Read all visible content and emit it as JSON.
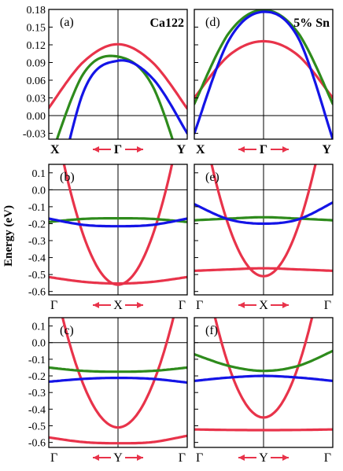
{
  "figure": {
    "ylabel": "Energy (eV)",
    "colors": {
      "red": "#e8334a",
      "green": "#2e8b1c",
      "blue": "#1414e6",
      "arrow": "#e8334a",
      "axis": "#000000"
    }
  },
  "chart_data": [
    {
      "id": "a",
      "type": "line",
      "label": "(a)",
      "annotation": "Ca122",
      "xlim": [
        -1,
        1
      ],
      "ylim": [
        -0.04,
        0.18
      ],
      "yticks": [
        "0.18",
        "0.15",
        "0.12",
        "0.09",
        "0.06",
        "0.03",
        "0.00",
        "-0.03"
      ],
      "yticks_v": [
        0.18,
        0.15,
        0.12,
        0.09,
        0.06,
        0.03,
        0.0,
        -0.03
      ],
      "xticklabels": [
        "X",
        "Γ",
        "Y"
      ],
      "series": [
        {
          "color": "red",
          "x": [
            -1,
            -0.5,
            0,
            0.5,
            1
          ],
          "y": [
            0.013,
            0.091,
            0.121,
            0.09,
            0.012
          ]
        },
        {
          "color": "green",
          "x": [
            -1,
            -0.5,
            0,
            0.5,
            1
          ],
          "y": [
            -0.08,
            0.071,
            0.1,
            0.05,
            -0.12
          ]
        },
        {
          "color": "blue",
          "x": [
            -1,
            -0.5,
            0,
            0.5,
            1
          ],
          "y": [
            -0.2,
            0.04,
            0.093,
            0.063,
            -0.03
          ]
        }
      ]
    },
    {
      "id": "d",
      "type": "line",
      "label": "(d)",
      "annotation": "5% Sn",
      "xlim": [
        -1,
        1
      ],
      "ylim": [
        -0.04,
        0.18
      ],
      "yticks": [],
      "yticks_v": [],
      "xticklabels": [
        "X",
        "Γ",
        "Y"
      ],
      "series": [
        {
          "color": "red",
          "x": [
            -1,
            -0.5,
            0,
            0.5,
            1
          ],
          "y": [
            0.03,
            0.102,
            0.126,
            0.102,
            0.03
          ]
        },
        {
          "color": "green",
          "x": [
            -1,
            -0.5,
            0,
            0.5,
            1
          ],
          "y": [
            0.02,
            0.14,
            0.179,
            0.14,
            0.02
          ]
        },
        {
          "color": "blue",
          "x": [
            -1,
            -0.5,
            0,
            0.5,
            1
          ],
          "y": [
            -0.03,
            0.128,
            0.176,
            0.132,
            -0.04
          ]
        }
      ]
    },
    {
      "id": "b",
      "type": "line",
      "label": "(b)",
      "xlim": [
        -1,
        1
      ],
      "ylim": [
        -0.62,
        0.15
      ],
      "yticks": [
        "0.1",
        "0.0",
        "-0.1",
        "-0.2",
        "-0.3",
        "-0.4",
        "-0.5",
        "-0.6"
      ],
      "yticks_v": [
        0.1,
        0.0,
        -0.1,
        -0.2,
        -0.3,
        -0.4,
        -0.5,
        -0.6
      ],
      "xticklabels": [
        "Γ",
        "X",
        "Γ"
      ],
      "series": [
        {
          "color": "red",
          "x": [
            -0.78,
            0,
            0.78
          ],
          "y": [
            0.15,
            -0.56,
            0.15
          ]
        },
        {
          "color": "red",
          "x": [
            -1,
            -0.5,
            0,
            0.5,
            1
          ],
          "y": [
            -0.515,
            -0.543,
            -0.553,
            -0.543,
            -0.515
          ]
        },
        {
          "color": "green",
          "x": [
            -1,
            -0.5,
            0,
            0.5,
            1
          ],
          "y": [
            -0.19,
            -0.172,
            -0.168,
            -0.172,
            -0.19
          ]
        },
        {
          "color": "blue",
          "x": [
            -1,
            -0.5,
            0,
            0.5,
            1
          ],
          "y": [
            -0.17,
            -0.207,
            -0.215,
            -0.207,
            -0.17
          ]
        }
      ]
    },
    {
      "id": "e",
      "type": "line",
      "label": "(e)",
      "xlim": [
        -1,
        1
      ],
      "ylim": [
        -0.62,
        0.15
      ],
      "yticks": [],
      "yticks_v": [],
      "xticklabels": [
        "Γ",
        "X",
        "Γ"
      ],
      "series": [
        {
          "color": "red",
          "x": [
            -0.75,
            0,
            0.75
          ],
          "y": [
            0.15,
            -0.51,
            0.15
          ]
        },
        {
          "color": "red",
          "x": [
            -1,
            -0.5,
            0,
            0.5,
            1
          ],
          "y": [
            -0.478,
            -0.47,
            -0.463,
            -0.47,
            -0.478
          ]
        },
        {
          "color": "green",
          "x": [
            -1,
            -0.5,
            0,
            0.5,
            1
          ],
          "y": [
            -0.18,
            -0.17,
            -0.162,
            -0.17,
            -0.18
          ]
        },
        {
          "color": "blue",
          "x": [
            -1,
            -0.5,
            0,
            0.5,
            1
          ],
          "y": [
            -0.085,
            -0.175,
            -0.2,
            -0.175,
            -0.075
          ]
        }
      ]
    },
    {
      "id": "c",
      "type": "line",
      "label": "(c)",
      "xlim": [
        -1,
        1
      ],
      "ylim": [
        -0.63,
        0.15
      ],
      "yticks": [
        "0.1",
        "0.0",
        "-0.1",
        "-0.2",
        "-0.3",
        "-0.4",
        "-0.5",
        "-0.6"
      ],
      "yticks_v": [
        0.1,
        0.0,
        -0.1,
        -0.2,
        -0.3,
        -0.4,
        -0.5,
        -0.6
      ],
      "xticklabels": [
        "Γ",
        "Y",
        "Γ"
      ],
      "series": [
        {
          "color": "red",
          "x": [
            -0.8,
            0,
            0.8
          ],
          "y": [
            0.15,
            -0.51,
            0.15
          ]
        },
        {
          "color": "red",
          "x": [
            -1,
            -0.5,
            0,
            0.5,
            1
          ],
          "y": [
            -0.57,
            -0.598,
            -0.605,
            -0.598,
            -0.56
          ]
        },
        {
          "color": "green",
          "x": [
            -1,
            -0.5,
            0,
            0.5,
            1
          ],
          "y": [
            -0.15,
            -0.17,
            -0.175,
            -0.17,
            -0.15
          ]
        },
        {
          "color": "blue",
          "x": [
            -1,
            -0.5,
            0,
            0.5,
            1
          ],
          "y": [
            -0.235,
            -0.218,
            -0.212,
            -0.218,
            -0.24
          ]
        }
      ]
    },
    {
      "id": "f",
      "type": "line",
      "label": "(f)",
      "xlim": [
        -1,
        1
      ],
      "ylim": [
        -0.63,
        0.15
      ],
      "yticks": [],
      "yticks_v": [],
      "xticklabels": [
        "Γ",
        "Y",
        "Γ"
      ],
      "series": [
        {
          "color": "red",
          "x": [
            -0.7,
            0,
            0.7
          ],
          "y": [
            0.15,
            -0.45,
            0.15
          ]
        },
        {
          "color": "red",
          "x": [
            -1,
            -0.5,
            0,
            0.5,
            1
          ],
          "y": [
            -0.522,
            -0.525,
            -0.526,
            -0.525,
            -0.522
          ]
        },
        {
          "color": "green",
          "x": [
            -1,
            -0.5,
            0,
            0.5,
            1
          ],
          "y": [
            -0.07,
            -0.14,
            -0.17,
            -0.14,
            -0.05
          ]
        },
        {
          "color": "blue",
          "x": [
            -1,
            -0.5,
            0,
            0.5,
            1
          ],
          "y": [
            -0.23,
            -0.21,
            -0.2,
            -0.21,
            -0.23
          ]
        }
      ]
    }
  ]
}
